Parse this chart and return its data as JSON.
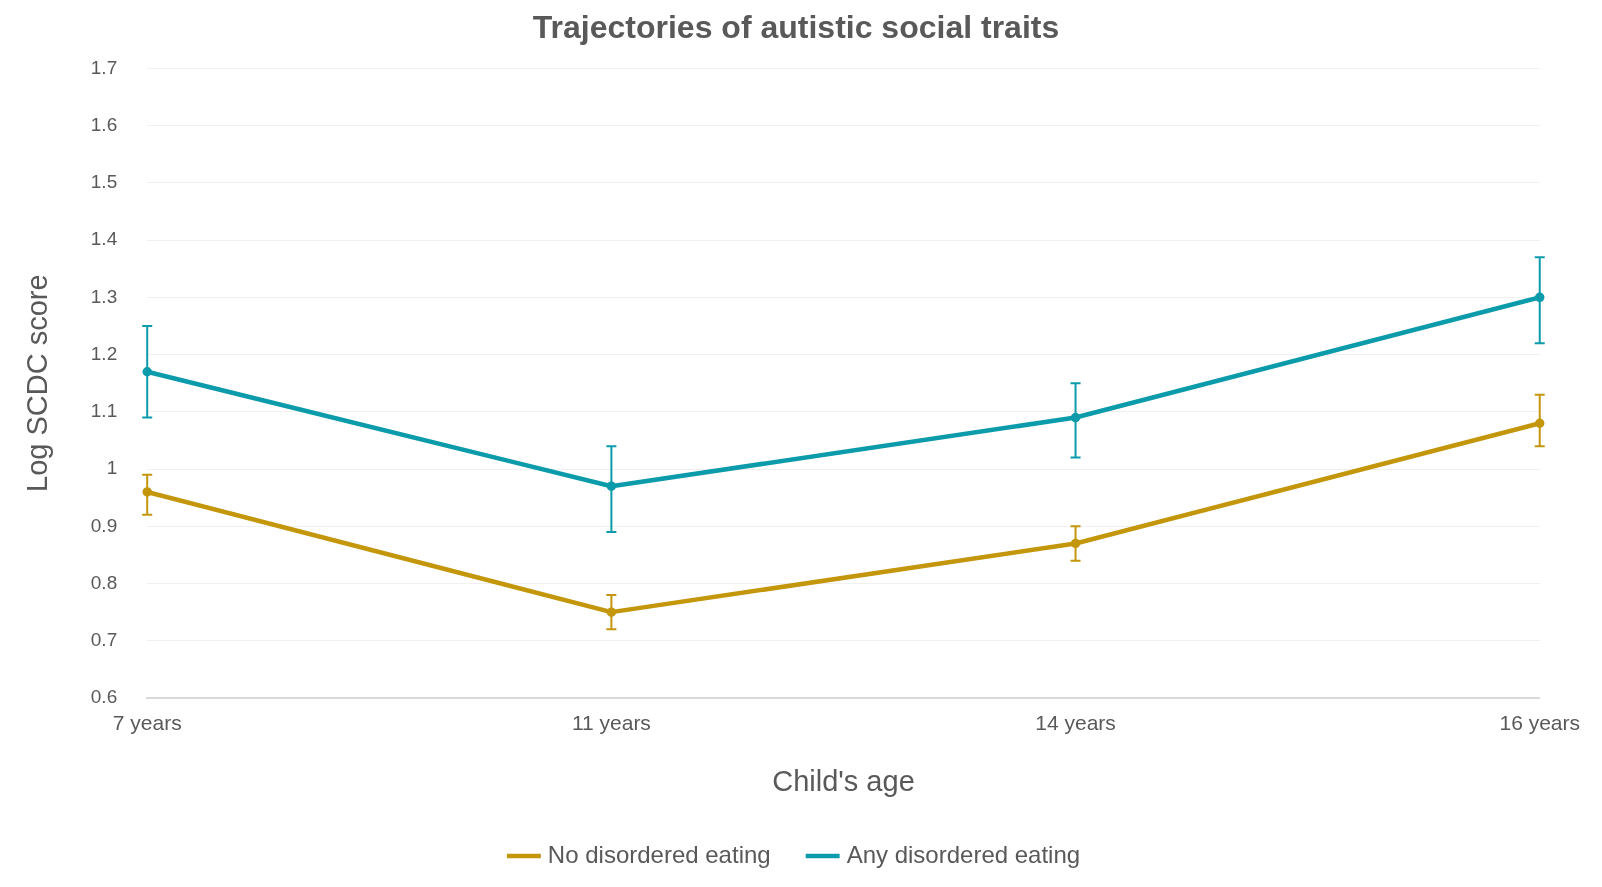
{
  "chart_data": {
    "type": "line",
    "title": "Trajectories of autistic social traits",
    "xlabel": "Child's age",
    "ylabel": "Log SCDC score",
    "categories": [
      "7 years",
      "11 years",
      "14 years",
      "16 years"
    ],
    "series": [
      {
        "name": "No disordered eating",
        "color": "#c4960c",
        "values": [
          0.96,
          0.75,
          0.87,
          1.08
        ],
        "errors": [
          [
            0.92,
            0.99
          ],
          [
            0.72,
            0.78
          ],
          [
            0.84,
            0.9
          ],
          [
            1.04,
            1.13
          ]
        ]
      },
      {
        "name": "Any disordered eating",
        "color": "#0b9bab",
        "values": [
          1.17,
          0.97,
          1.09,
          1.3
        ],
        "errors": [
          [
            1.09,
            1.25
          ],
          [
            0.89,
            1.04
          ],
          [
            1.02,
            1.15
          ],
          [
            1.22,
            1.37
          ]
        ]
      }
    ],
    "ylim": [
      0.6,
      1.7
    ],
    "yticks": [
      0.6,
      0.7,
      0.8,
      0.9,
      1,
      1.1,
      1.2,
      1.3,
      1.4,
      1.5,
      1.6,
      1.7
    ],
    "grid": "y",
    "legend": "bottom",
    "marker": "circle",
    "line_style": "solid"
  }
}
